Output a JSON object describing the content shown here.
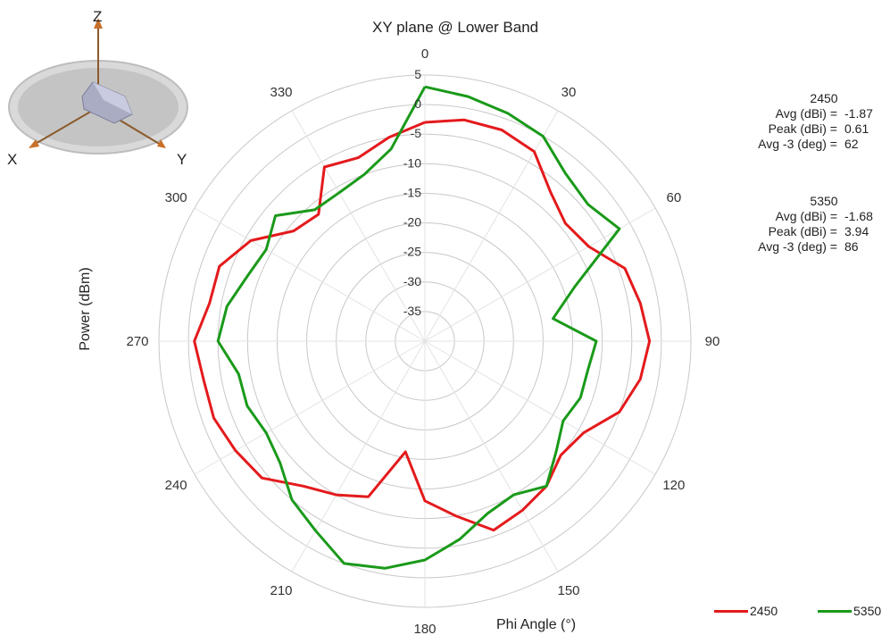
{
  "chart_data": {
    "type": "polar-line",
    "title": "XY plane @ Lower Band",
    "xlabel": "Phi  Angle (°)",
    "ylabel": "Power (dBm)",
    "radial_range": [
      -40,
      5
    ],
    "radial_ticks": [
      5,
      0,
      -5,
      -10,
      -15,
      -20,
      -25,
      -30,
      -35
    ],
    "angle_labels": [
      "0",
      "30",
      "60",
      "90",
      "120",
      "150",
      "180",
      "210",
      "240",
      "270",
      "300",
      "330"
    ],
    "grid": true,
    "legend_position": "bottom-right",
    "series": [
      {
        "name": "2450",
        "color": "#e41a1c",
        "angles": [
          0,
          10,
          20,
          30,
          40,
          50,
          60,
          70,
          80,
          90,
          100,
          110,
          120,
          130,
          140,
          150,
          160,
          170,
          180,
          190,
          200,
          210,
          220,
          230,
          240,
          250,
          260,
          270,
          280,
          290,
          300,
          310,
          320,
          330,
          340,
          350
        ],
        "values": [
          -3,
          -2,
          -2,
          -3,
          -7,
          -9,
          -8,
          -4,
          -3,
          -2,
          -3,
          -5,
          -9,
          -10,
          -8,
          -7,
          -6,
          -10,
          -13,
          -21,
          -12,
          -10,
          -8,
          -4,
          -3,
          -2,
          -2,
          -1,
          -3,
          -3,
          -6,
          -11,
          -12,
          -6,
          -7,
          -5
        ]
      },
      {
        "name": "5350",
        "color": "#1a9a1a",
        "angles": [
          0,
          10,
          20,
          30,
          40,
          50,
          60,
          70,
          80,
          90,
          100,
          110,
          120,
          130,
          140,
          150,
          160,
          170,
          180,
          190,
          200,
          210,
          220,
          230,
          240,
          250,
          260,
          270,
          280,
          290,
          300,
          310,
          320,
          330,
          340,
          350
        ],
        "values": [
          3,
          2,
          1,
          0,
          -3,
          -4,
          -2,
          -13,
          -18,
          -11,
          -12,
          -12,
          -13,
          -11,
          -8,
          -10,
          -9,
          -6,
          -3,
          -1,
          0,
          -3,
          -5,
          -8,
          -9,
          -8,
          -8,
          -5,
          -6,
          -8,
          -9,
          -7,
          -11,
          -11,
          -10,
          -7
        ]
      }
    ]
  },
  "stats": [
    {
      "band": "2450",
      "rows": [
        {
          "label": "Avg (dBi) =",
          "value": "-1.87"
        },
        {
          "label": "Peak (dBi) =",
          "value": "0.61"
        },
        {
          "label": "Avg -3 (deg) =",
          "value": "62"
        }
      ]
    },
    {
      "band": "5350",
      "rows": [
        {
          "label": "Avg (dBi) =",
          "value": "-1.68"
        },
        {
          "label": "Peak (dBi) =",
          "value": "3.94"
        },
        {
          "label": "Avg -3 (deg) =",
          "value": "86"
        }
      ]
    }
  ],
  "orientation_icon": {
    "labels": {
      "z": "Z",
      "x": "X",
      "y": "Y"
    },
    "name": "antenna-orientation-icon"
  }
}
